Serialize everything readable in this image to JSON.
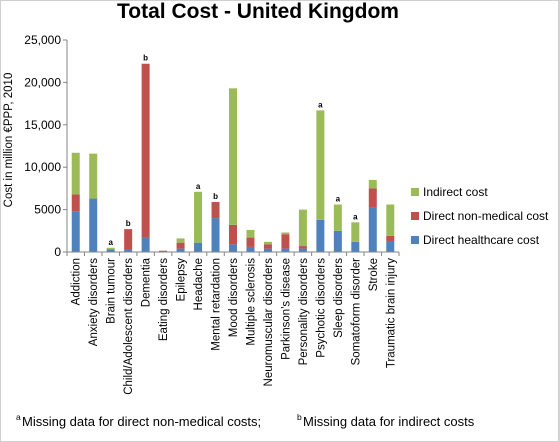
{
  "chart_data": {
    "type": "bar",
    "stacked": true,
    "title": "Total Cost - United Kingdom",
    "ylabel": "Cost in million €PPP, 2010",
    "xlabel": "",
    "ylim": [
      0,
      25000
    ],
    "yticks": [
      "0",
      "5000",
      "10,000",
      "15,000",
      "20,000",
      "25,000"
    ],
    "ytick_values": [
      0,
      5000,
      10000,
      15000,
      20000,
      25000
    ],
    "grid": false,
    "legend_position": "right",
    "categories": [
      "Addiction",
      "Anxiety disorders",
      "Brain tumour",
      "Child/Adolescent disorders",
      "Dementia",
      "Eating disorders",
      "Epilepsy",
      "Headache",
      "Mental retardation",
      "Mood disorders",
      "Multiple sclerosis",
      "Neuromuscular disorders",
      "Parkinson's disease",
      "Personality disorders",
      "Psychotic disorders",
      "Sleep disorders",
      "Somatoform disorder",
      "Stroke",
      "Traumatic brain injury"
    ],
    "series": [
      {
        "name": "Direct healthcare cost",
        "color": "#4f81bd",
        "values": [
          4800,
          6300,
          300,
          300,
          1700,
          50,
          400,
          1100,
          4000,
          900,
          600,
          400,
          400,
          400,
          3800,
          2500,
          1200,
          5300,
          1300
        ]
      },
      {
        "name": "Direct non-medical cost",
        "color": "#c0504d",
        "values": [
          2000,
          0,
          0,
          2400,
          20500,
          100,
          700,
          0,
          1900,
          2300,
          1100,
          500,
          1700,
          300,
          0,
          0,
          0,
          2200,
          600
        ]
      },
      {
        "name": "Indirect cost",
        "color": "#9bbb59",
        "values": [
          4900,
          5300,
          200,
          0,
          0,
          0,
          500,
          6000,
          0,
          16100,
          900,
          300,
          200,
          4300,
          12900,
          3100,
          2300,
          1000,
          3700
        ]
      }
    ],
    "legend_order": [
      "Indirect cost",
      "Direct non-medical cost",
      "Direct healthcare cost"
    ],
    "annotations": [
      "",
      "",
      "a",
      "b",
      "b",
      "",
      "",
      "a",
      "b",
      "",
      "",
      "",
      "",
      "",
      "a",
      "a",
      "a",
      "",
      ""
    ]
  },
  "footnotes": {
    "a_mark": "a",
    "a_text": "Missing data for direct non-medical costs;",
    "b_mark": "b",
    "b_text": "Missing data for indirect costs"
  }
}
